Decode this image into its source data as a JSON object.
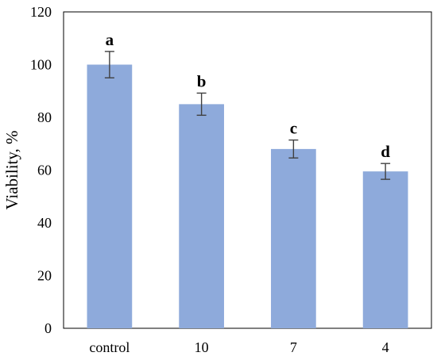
{
  "chart_data": {
    "type": "bar",
    "title": "",
    "xlabel": "",
    "ylabel": "Viability, %",
    "ylim": [
      0,
      120
    ],
    "yticks": [
      "0",
      "20",
      "40",
      "60",
      "80",
      "100",
      "120"
    ],
    "categories": [
      "control",
      "10",
      "7",
      "4"
    ],
    "values": [
      100,
      85,
      68,
      59.5
    ],
    "errors": [
      5,
      4.2,
      3.4,
      3
    ],
    "annotations": [
      "a",
      "b",
      "c",
      "d"
    ],
    "grid": false,
    "legend": "none",
    "colors": {
      "bar": "#8eaadb",
      "error_bar": "#404040",
      "axis": "#000000"
    }
  }
}
